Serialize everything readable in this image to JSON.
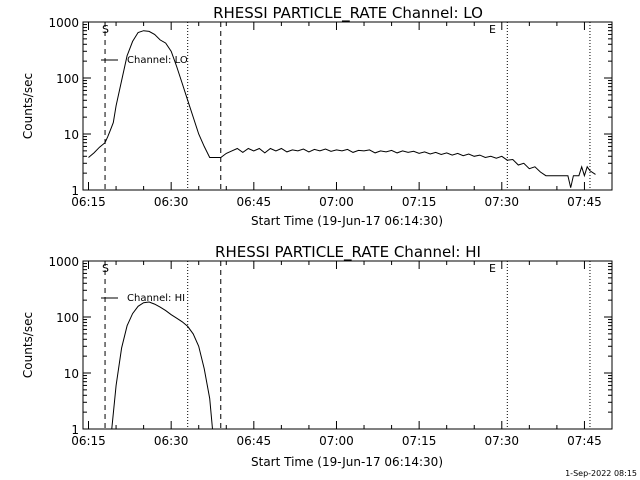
{
  "footer_stamp": "1-Sep-2022 08:15",
  "chart_data": [
    {
      "type": "line",
      "title": "RHESSI PARTICLE_RATE Channel: LO",
      "xlabel": "Start Time (19-Jun-17 06:14:30)",
      "ylabel": "Counts/sec",
      "yscale": "log",
      "ylim": [
        1,
        1000
      ],
      "xlim": [
        "06:14",
        "07:50"
      ],
      "x_ticks": [
        "06:15",
        "06:30",
        "06:45",
        "07:00",
        "07:15",
        "07:30",
        "07:45"
      ],
      "y_ticks": [
        "1",
        "10",
        "100",
        "1000"
      ],
      "legend": "Channel: LO",
      "markers": {
        "start_label": "S",
        "end_label": "E"
      },
      "dashed_lines": [
        "06:18",
        "06:39"
      ],
      "dotted_lines": [
        "06:33",
        "07:31",
        "07:46"
      ],
      "series": [
        {
          "x": [
            "06:15",
            "06:16",
            "06:17",
            "06:18",
            "06:18:30",
            "06:19",
            "06:19:30",
            "06:20",
            "06:21",
            "06:22",
            "06:23",
            "06:24",
            "06:25",
            "06:26",
            "06:27",
            "06:28",
            "06:29",
            "06:30",
            "06:31",
            "06:32",
            "06:33",
            "06:34",
            "06:35",
            "06:36",
            "06:37",
            "06:38",
            "06:39",
            "06:40",
            "06:41",
            "06:42",
            "06:43",
            "06:44",
            "06:45",
            "06:46",
            "06:47",
            "06:48",
            "06:49",
            "06:50",
            "06:51",
            "06:52",
            "06:53",
            "06:54",
            "06:55",
            "06:56",
            "06:57",
            "06:58",
            "06:59",
            "07:00",
            "07:01",
            "07:02",
            "07:03",
            "07:04",
            "07:05",
            "07:06",
            "07:07",
            "07:08",
            "07:09",
            "07:10",
            "07:11",
            "07:12",
            "07:13",
            "07:14",
            "07:15",
            "07:16",
            "07:17",
            "07:18",
            "07:19",
            "07:20",
            "07:21",
            "07:22",
            "07:23",
            "07:24",
            "07:25",
            "07:26",
            "07:27",
            "07:28",
            "07:29",
            "07:30",
            "07:31",
            "07:32",
            "07:33",
            "07:34",
            "07:35",
            "07:36",
            "07:37",
            "07:38",
            "07:39",
            "07:40",
            "07:41",
            "07:42",
            "07:42:30",
            "07:43",
            "07:43:30",
            "07:44",
            "07:44:30",
            "07:45",
            "07:45:30",
            "07:46",
            "07:47"
          ],
          "y": [
            3.8,
            4.6,
            5.8,
            7,
            9,
            12,
            16,
            32,
            90,
            250,
            450,
            650,
            700,
            680,
            600,
            480,
            420,
            300,
            160,
            80,
            40,
            20,
            10,
            6,
            3.8,
            3.8,
            3.8,
            4.5,
            5,
            5.5,
            4.7,
            5.5,
            5,
            5.5,
            4.6,
            5.5,
            5,
            5.5,
            4.8,
            5.2,
            5,
            5.4,
            4.8,
            5.3,
            5,
            5.4,
            4.9,
            5.2,
            5,
            5.3,
            4.7,
            5.1,
            5,
            5.2,
            4.6,
            5,
            4.8,
            5.1,
            4.6,
            5,
            4.7,
            4.9,
            4.5,
            4.8,
            4.4,
            4.7,
            4.3,
            4.6,
            4.2,
            4.5,
            4.1,
            4.4,
            4,
            4.2,
            3.8,
            4,
            3.7,
            4,
            3.4,
            3.5,
            2.8,
            3,
            2.4,
            2.6,
            2.1,
            1.8,
            1.8,
            1.8,
            1.8,
            1.8,
            1.1,
            1.8,
            1.8,
            1.8,
            2.6,
            1.8,
            2.6,
            2.2,
            1.9
          ]
        }
      ]
    },
    {
      "type": "line",
      "title": "RHESSI PARTICLE_RATE Channel: HI",
      "xlabel": "Start Time (19-Jun-17 06:14:30)",
      "ylabel": "Counts/sec",
      "yscale": "log",
      "ylim": [
        1,
        1000
      ],
      "xlim": [
        "06:14",
        "07:50"
      ],
      "x_ticks": [
        "06:15",
        "06:30",
        "06:45",
        "07:00",
        "07:15",
        "07:30",
        "07:45"
      ],
      "y_ticks": [
        "1",
        "10",
        "100",
        "1000"
      ],
      "legend": "Channel: HI",
      "markers": {
        "start_label": "S",
        "end_label": "E"
      },
      "dashed_lines": [
        "06:18",
        "06:39"
      ],
      "dotted_lines": [
        "06:33",
        "07:31",
        "07:46"
      ],
      "series": [
        {
          "x": [
            "06:19:10",
            "06:20",
            "06:21",
            "06:22",
            "06:23",
            "06:24",
            "06:25",
            "06:26",
            "06:27",
            "06:28",
            "06:29",
            "06:30",
            "06:31",
            "06:32",
            "06:33",
            "06:34",
            "06:35",
            "06:36",
            "06:37",
            "06:37:30"
          ],
          "y": [
            0.9,
            6,
            28,
            70,
            115,
            155,
            180,
            185,
            170,
            150,
            130,
            110,
            95,
            82,
            68,
            50,
            30,
            12,
            3.5,
            1
          ]
        }
      ]
    }
  ]
}
